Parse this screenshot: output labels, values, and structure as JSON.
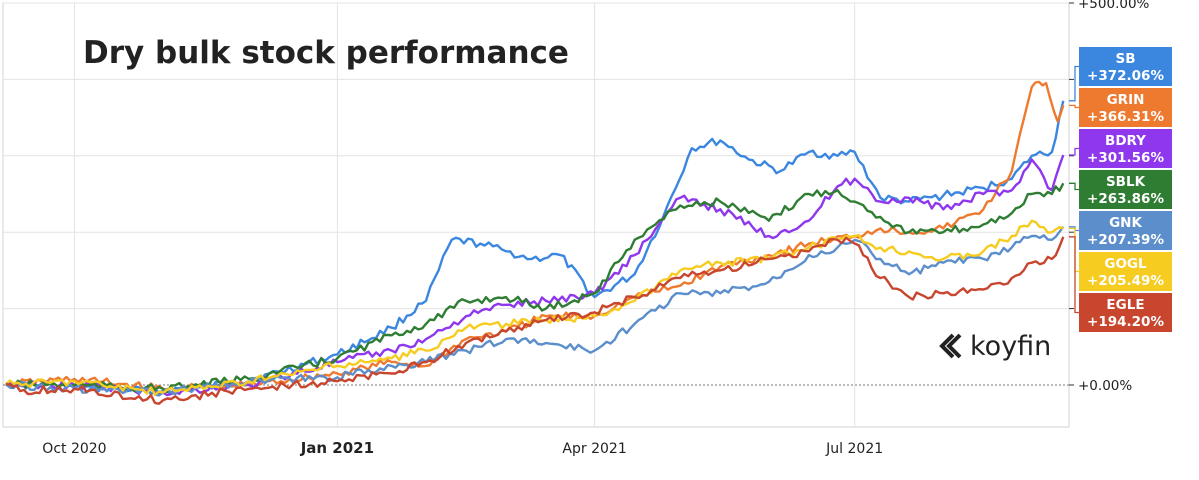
{
  "chart_data": {
    "type": "line",
    "title": "Dry bulk stock performance",
    "brand": "koyfin",
    "x_ticks": [
      "Oct 2020",
      "Jan 2021",
      "Apr 2021",
      "Jul 2021"
    ],
    "x_tick_dates": [
      "2020-10-01",
      "2021-01-01",
      "2021-04-01",
      "2021-07-01"
    ],
    "x_range": [
      "2020-09-06",
      "2021-09-14"
    ],
    "ylim": [
      -55,
      500
    ],
    "y_ticks": [
      0,
      100,
      200,
      300,
      400,
      500
    ],
    "y_tick_labels": [
      "+0.00%",
      "",
      "",
      "",
      "",
      "+500.00%"
    ],
    "baseline": 0,
    "grid": true,
    "legend_position": "right",
    "series": [
      {
        "name": "SB",
        "label": "+372.06%",
        "color": "#3b87e0",
        "points": [
          [
            "2020-09-07",
            1
          ],
          [
            "2020-10-01",
            -3
          ],
          [
            "2020-11-01",
            -8
          ],
          [
            "2020-12-01",
            5
          ],
          [
            "2021-01-01",
            40
          ],
          [
            "2021-01-20",
            75
          ],
          [
            "2021-02-01",
            110
          ],
          [
            "2021-02-10",
            190
          ],
          [
            "2021-02-20",
            185
          ],
          [
            "2021-03-01",
            175
          ],
          [
            "2021-03-10",
            165
          ],
          [
            "2021-03-20",
            170
          ],
          [
            "2021-04-01",
            115
          ],
          [
            "2021-04-15",
            145
          ],
          [
            "2021-04-25",
            220
          ],
          [
            "2021-05-05",
            310
          ],
          [
            "2021-05-15",
            320
          ],
          [
            "2021-05-25",
            295
          ],
          [
            "2021-06-05",
            280
          ],
          [
            "2021-06-15",
            305
          ],
          [
            "2021-06-25",
            300
          ],
          [
            "2021-07-01",
            305
          ],
          [
            "2021-07-10",
            245
          ],
          [
            "2021-07-20",
            240
          ],
          [
            "2021-08-01",
            248
          ],
          [
            "2021-08-15",
            258
          ],
          [
            "2021-08-25",
            270
          ],
          [
            "2021-09-01",
            300
          ],
          [
            "2021-09-08",
            305
          ],
          [
            "2021-09-12",
            372
          ]
        ]
      },
      {
        "name": "GRIN",
        "label": "+366.31%",
        "color": "#ee7a30",
        "points": [
          [
            "2020-09-07",
            1
          ],
          [
            "2020-10-01",
            8
          ],
          [
            "2020-11-01",
            -5
          ],
          [
            "2020-12-01",
            0
          ],
          [
            "2021-01-01",
            15
          ],
          [
            "2021-01-20",
            30
          ],
          [
            "2021-02-01",
            25
          ],
          [
            "2021-02-15",
            60
          ],
          [
            "2021-03-01",
            70
          ],
          [
            "2021-03-15",
            90
          ],
          [
            "2021-04-01",
            90
          ],
          [
            "2021-04-15",
            115
          ],
          [
            "2021-05-01",
            130
          ],
          [
            "2021-05-15",
            155
          ],
          [
            "2021-06-01",
            170
          ],
          [
            "2021-06-15",
            185
          ],
          [
            "2021-07-01",
            195
          ],
          [
            "2021-07-10",
            205
          ],
          [
            "2021-07-20",
            200
          ],
          [
            "2021-08-01",
            205
          ],
          [
            "2021-08-15",
            230
          ],
          [
            "2021-08-25",
            280
          ],
          [
            "2021-09-01",
            390
          ],
          [
            "2021-09-06",
            395
          ],
          [
            "2021-09-10",
            345
          ],
          [
            "2021-09-12",
            366
          ]
        ]
      },
      {
        "name": "BDRY",
        "label": "+301.56%",
        "color": "#8e37ec",
        "points": [
          [
            "2020-09-07",
            1
          ],
          [
            "2020-10-01",
            0
          ],
          [
            "2020-11-01",
            -10
          ],
          [
            "2020-12-01",
            0
          ],
          [
            "2021-01-01",
            30
          ],
          [
            "2021-01-20",
            45
          ],
          [
            "2021-02-01",
            60
          ],
          [
            "2021-02-15",
            90
          ],
          [
            "2021-03-01",
            105
          ],
          [
            "2021-03-15",
            110
          ],
          [
            "2021-04-01",
            120
          ],
          [
            "2021-04-15",
            170
          ],
          [
            "2021-05-01",
            245
          ],
          [
            "2021-05-15",
            230
          ],
          [
            "2021-06-01",
            195
          ],
          [
            "2021-06-15",
            215
          ],
          [
            "2021-06-25",
            260
          ],
          [
            "2021-07-01",
            270
          ],
          [
            "2021-07-10",
            240
          ],
          [
            "2021-07-20",
            245
          ],
          [
            "2021-08-01",
            230
          ],
          [
            "2021-08-15",
            250
          ],
          [
            "2021-08-25",
            255
          ],
          [
            "2021-09-01",
            295
          ],
          [
            "2021-09-08",
            255
          ],
          [
            "2021-09-12",
            301
          ]
        ]
      },
      {
        "name": "SBLK",
        "label": "+263.86%",
        "color": "#2e7d32",
        "points": [
          [
            "2020-09-07",
            1
          ],
          [
            "2020-10-01",
            0
          ],
          [
            "2020-11-01",
            -5
          ],
          [
            "2020-12-01",
            8
          ],
          [
            "2021-01-01",
            35
          ],
          [
            "2021-01-20",
            65
          ],
          [
            "2021-02-01",
            80
          ],
          [
            "2021-02-15",
            110
          ],
          [
            "2021-03-01",
            115
          ],
          [
            "2021-03-15",
            100
          ],
          [
            "2021-04-01",
            120
          ],
          [
            "2021-04-15",
            190
          ],
          [
            "2021-05-01",
            235
          ],
          [
            "2021-05-15",
            240
          ],
          [
            "2021-06-01",
            215
          ],
          [
            "2021-06-15",
            250
          ],
          [
            "2021-06-25",
            255
          ],
          [
            "2021-07-01",
            240
          ],
          [
            "2021-07-10",
            220
          ],
          [
            "2021-07-20",
            200
          ],
          [
            "2021-08-01",
            200
          ],
          [
            "2021-08-15",
            210
          ],
          [
            "2021-08-25",
            225
          ],
          [
            "2021-09-01",
            250
          ],
          [
            "2021-09-08",
            250
          ],
          [
            "2021-09-12",
            264
          ]
        ]
      },
      {
        "name": "GNK",
        "label": "+207.39%",
        "color": "#5b8ecb",
        "points": [
          [
            "2020-09-07",
            1
          ],
          [
            "2020-10-01",
            -5
          ],
          [
            "2020-11-01",
            -10
          ],
          [
            "2020-12-01",
            5
          ],
          [
            "2021-01-01",
            10
          ],
          [
            "2021-01-20",
            25
          ],
          [
            "2021-02-01",
            30
          ],
          [
            "2021-02-15",
            45
          ],
          [
            "2021-03-01",
            60
          ],
          [
            "2021-03-15",
            55
          ],
          [
            "2021-04-01",
            45
          ],
          [
            "2021-04-15",
            80
          ],
          [
            "2021-05-01",
            120
          ],
          [
            "2021-05-15",
            120
          ],
          [
            "2021-06-01",
            135
          ],
          [
            "2021-06-15",
            170
          ],
          [
            "2021-06-25",
            180
          ],
          [
            "2021-07-01",
            190
          ],
          [
            "2021-07-10",
            165
          ],
          [
            "2021-07-20",
            145
          ],
          [
            "2021-08-01",
            160
          ],
          [
            "2021-08-15",
            165
          ],
          [
            "2021-08-25",
            180
          ],
          [
            "2021-09-01",
            195
          ],
          [
            "2021-09-08",
            190
          ],
          [
            "2021-09-12",
            207
          ]
        ]
      },
      {
        "name": "GOGL",
        "label": "+205.49%",
        "color": "#f5cc1f",
        "points": [
          [
            "2020-09-07",
            1
          ],
          [
            "2020-10-01",
            5
          ],
          [
            "2020-11-01",
            -10
          ],
          [
            "2020-12-01",
            5
          ],
          [
            "2021-01-01",
            25
          ],
          [
            "2021-01-20",
            35
          ],
          [
            "2021-02-01",
            45
          ],
          [
            "2021-02-15",
            75
          ],
          [
            "2021-03-01",
            80
          ],
          [
            "2021-03-15",
            85
          ],
          [
            "2021-04-01",
            90
          ],
          [
            "2021-04-15",
            110
          ],
          [
            "2021-05-01",
            150
          ],
          [
            "2021-05-15",
            160
          ],
          [
            "2021-06-01",
            165
          ],
          [
            "2021-06-15",
            180
          ],
          [
            "2021-06-25",
            190
          ],
          [
            "2021-07-01",
            195
          ],
          [
            "2021-07-10",
            180
          ],
          [
            "2021-07-20",
            175
          ],
          [
            "2021-08-01",
            165
          ],
          [
            "2021-08-15",
            175
          ],
          [
            "2021-08-25",
            195
          ],
          [
            "2021-09-01",
            215
          ],
          [
            "2021-09-08",
            200
          ],
          [
            "2021-09-12",
            205
          ]
        ]
      },
      {
        "name": "EGLE",
        "label": "+194.20%",
        "color": "#c8452e",
        "points": [
          [
            "2020-09-07",
            1
          ],
          [
            "2020-09-12",
            -8
          ],
          [
            "2020-10-01",
            -5
          ],
          [
            "2020-11-01",
            -20
          ],
          [
            "2020-12-01",
            -5
          ],
          [
            "2021-01-01",
            5
          ],
          [
            "2021-01-20",
            15
          ],
          [
            "2021-02-01",
            30
          ],
          [
            "2021-02-15",
            55
          ],
          [
            "2021-03-01",
            70
          ],
          [
            "2021-03-15",
            85
          ],
          [
            "2021-04-01",
            95
          ],
          [
            "2021-04-15",
            115
          ],
          [
            "2021-05-01",
            140
          ],
          [
            "2021-05-15",
            150
          ],
          [
            "2021-06-01",
            165
          ],
          [
            "2021-06-15",
            175
          ],
          [
            "2021-06-25",
            190
          ],
          [
            "2021-07-01",
            185
          ],
          [
            "2021-07-10",
            140
          ],
          [
            "2021-07-20",
            115
          ],
          [
            "2021-08-01",
            120
          ],
          [
            "2021-08-15",
            125
          ],
          [
            "2021-08-25",
            140
          ],
          [
            "2021-09-01",
            160
          ],
          [
            "2021-09-08",
            165
          ],
          [
            "2021-09-12",
            194
          ]
        ]
      }
    ]
  }
}
